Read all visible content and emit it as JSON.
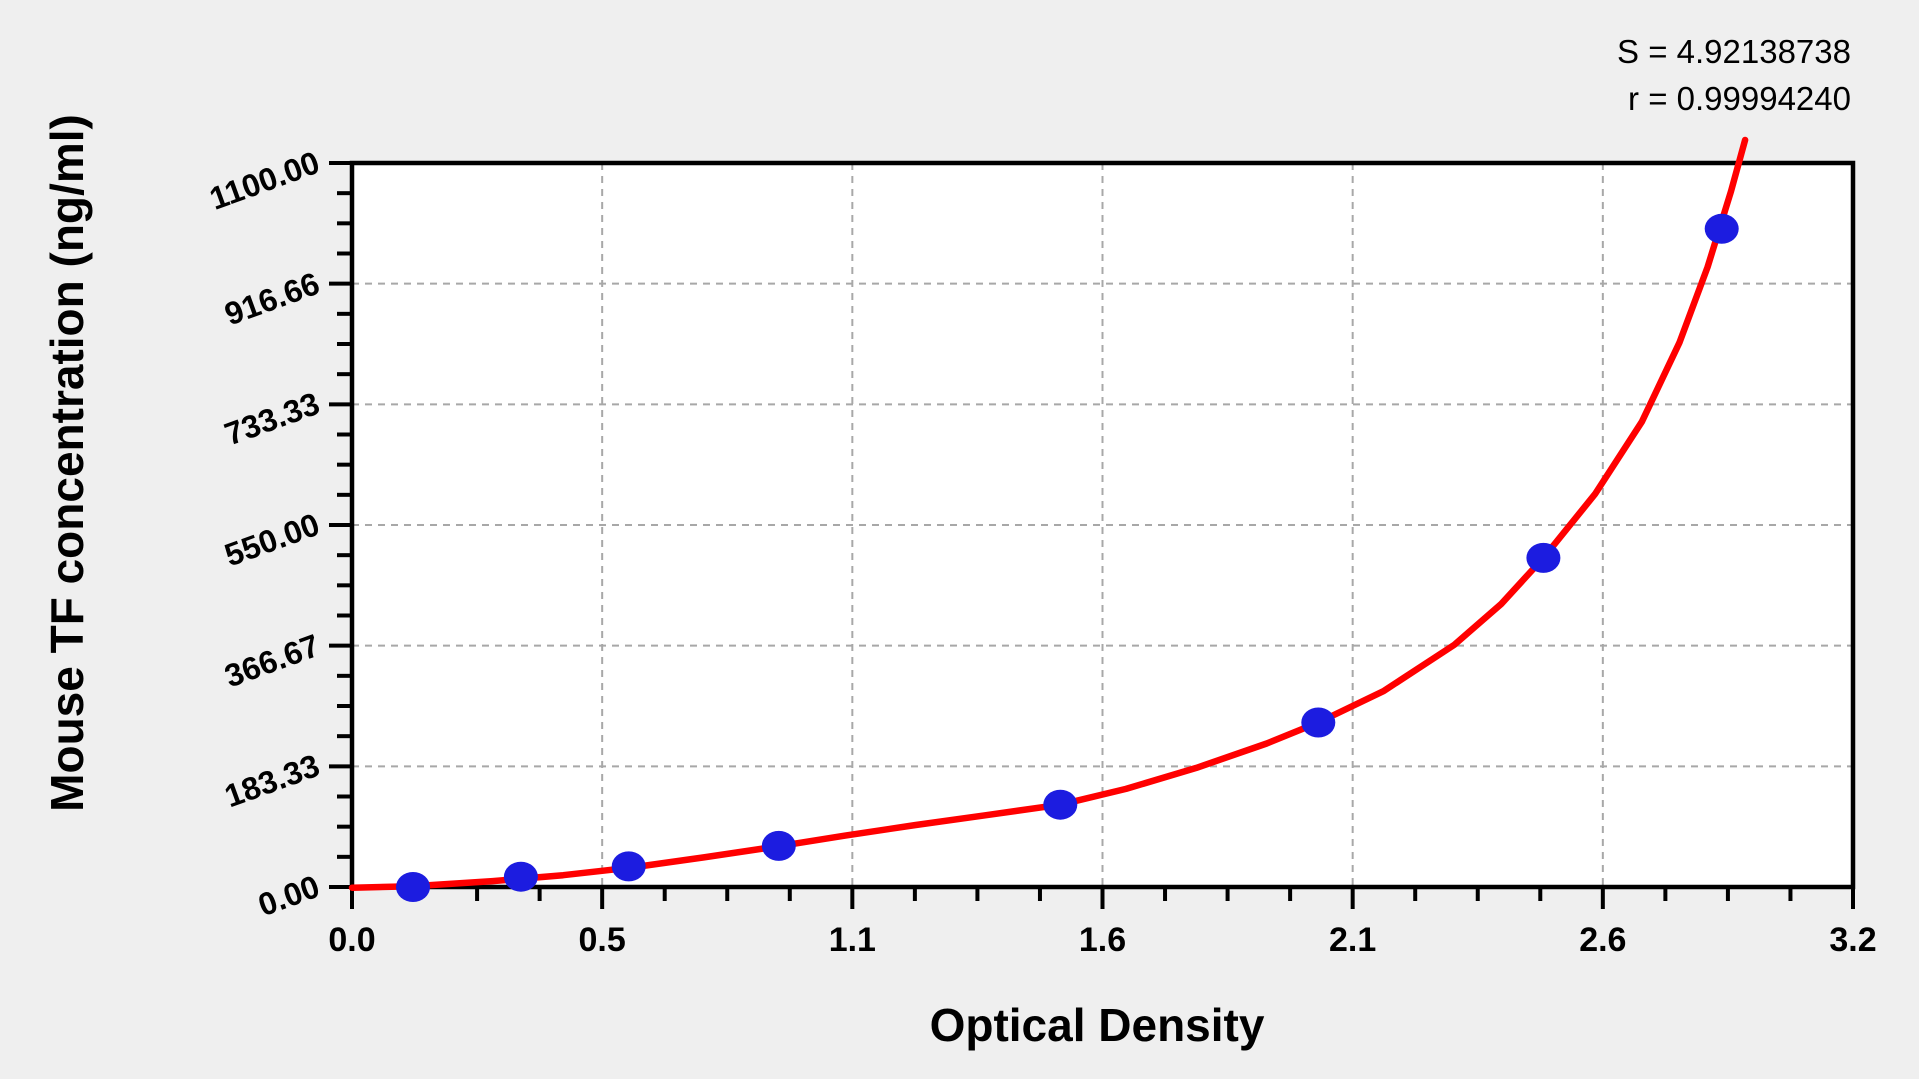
{
  "figure": {
    "background": "#efefef",
    "plot_background": "#ffffff",
    "stats": {
      "s": "S = 4.92138738",
      "r": "r = 0.99994240"
    }
  },
  "chart_data": {
    "type": "scatter",
    "title": "",
    "xlabel": "Optical Density",
    "ylabel": "Mouse TF concentration (ng/ml)",
    "xlim": [
      0,
      3.2
    ],
    "ylim": [
      0,
      1100
    ],
    "x_tick_labels": [
      "0.0",
      "0.5",
      "1.1",
      "1.6",
      "2.1",
      "2.6",
      "3.2"
    ],
    "y_tick_labels": [
      "0.00",
      "183.33",
      "366.67",
      "550.00",
      "733.33",
      "916.66",
      "1100.00"
    ],
    "major_divisions": 6,
    "minor_per_major": 4,
    "grid": {
      "style": "dashed",
      "color": "#a8a8a8"
    },
    "legend_position": "none",
    "fit_stats": {
      "S": 4.92138738,
      "r": 0.9999424
    },
    "series": [
      {
        "name": "standard-points",
        "type": "scatter",
        "color": "#1c1ce0",
        "x": [
          0.13,
          0.36,
          0.59,
          0.91,
          1.51,
          2.06,
          2.54,
          2.92
        ],
        "y": [
          0,
          15.6,
          31.25,
          62.5,
          125,
          250,
          500,
          1000
        ]
      },
      {
        "name": "fitted-curve",
        "type": "line",
        "color": "#ff0000",
        "points": [
          [
            0,
            -1
          ],
          [
            0.13,
            1
          ],
          [
            0.3,
            9
          ],
          [
            0.45,
            18
          ],
          [
            0.6,
            30
          ],
          [
            0.75,
            45
          ],
          [
            0.91,
            62
          ],
          [
            1.05,
            78
          ],
          [
            1.2,
            94
          ],
          [
            1.35,
            109
          ],
          [
            1.51,
            125
          ],
          [
            1.65,
            149
          ],
          [
            1.8,
            181
          ],
          [
            1.95,
            218
          ],
          [
            2.06,
            250
          ],
          [
            2.2,
            298
          ],
          [
            2.35,
            368
          ],
          [
            2.45,
            430
          ],
          [
            2.54,
            500
          ],
          [
            2.65,
            597
          ],
          [
            2.75,
            707
          ],
          [
            2.83,
            827
          ],
          [
            2.89,
            942
          ],
          [
            2.94,
            1057
          ],
          [
            2.97,
            1135
          ]
        ]
      }
    ]
  }
}
